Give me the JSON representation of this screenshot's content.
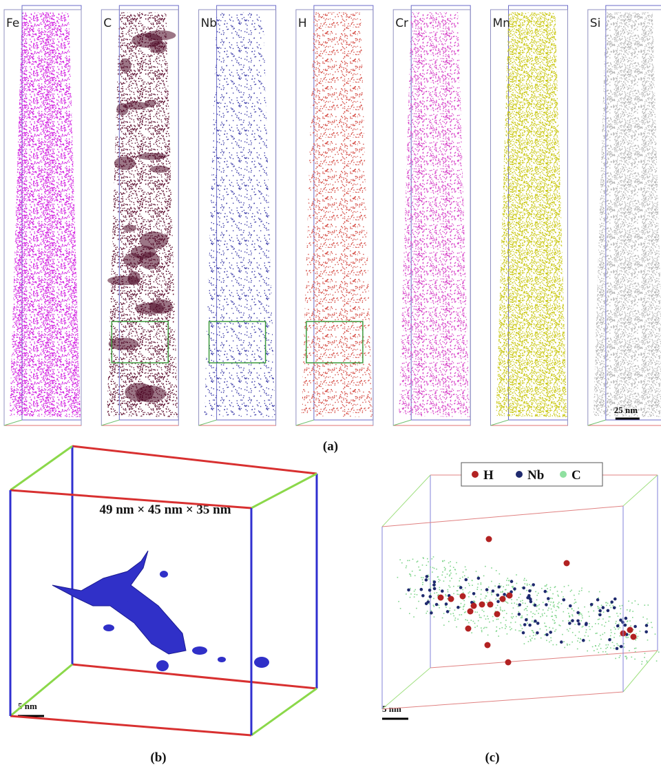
{
  "panel_a": {
    "elements": [
      "Fe",
      "C",
      "Nb",
      "H",
      "Cr",
      "Mn",
      "Si"
    ],
    "scale_bar": "25 nm",
    "caption": "(a)"
  },
  "panel_b": {
    "dimensions": "49 nm × 45 nm × 35 nm",
    "scale_bar": "5 nm",
    "caption": "(b)"
  },
  "panel_c": {
    "legend": [
      "H",
      "Nb",
      "C"
    ],
    "scale_bar": "5 nm",
    "caption": "(c)"
  }
}
